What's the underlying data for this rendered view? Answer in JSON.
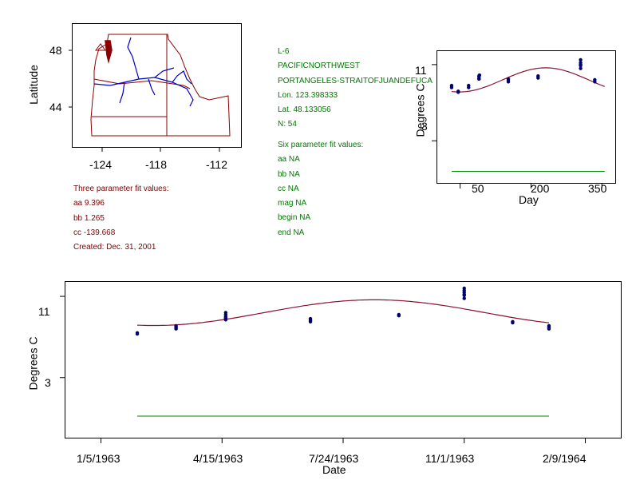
{
  "colors": {
    "fit_curve": "#8b1030",
    "baseline": "#008000",
    "points": "#00006e",
    "map_border": "#8b0000",
    "rivers": "#0000cc",
    "info_green": "#007700",
    "info_maroon": "#7a0000"
  },
  "map": {
    "ylabel": "Latitude",
    "y_ticks": [
      "48",
      "44"
    ],
    "x_ticks": [
      "-124",
      "-118",
      "-112"
    ]
  },
  "station_info": {
    "lines": [
      "L-6",
      "PACIFICNORTHWEST",
      "PORTANGELES-STRAITOFJUANDEFUCA",
      "Lon. 123.398333",
      "Lat. 48.133056",
      "N: 54"
    ]
  },
  "six_param": {
    "lines": [
      "Six parameter fit values:",
      "aa NA",
      "bb NA",
      "cc NA",
      "mag NA",
      "begin NA",
      "end NA"
    ]
  },
  "three_param": {
    "lines": [
      "Three parameter fit values:",
      "aa 9.396",
      "bb 1.265",
      "cc -139.668",
      "Created:   Dec. 31, 2001"
    ]
  },
  "chart_data": [
    {
      "type": "scatter",
      "name": "seasonal",
      "xlabel": "Day",
      "ylabel": "Degrees C",
      "xlim": [
        0,
        380
      ],
      "ylim": [
        -1.5,
        12.5
      ],
      "x_ticks": [
        50,
        200,
        350
      ],
      "x_tick_labels": [
        "50",
        "200",
        "350"
      ],
      "y_ticks": [
        3,
        11
      ],
      "y_tick_labels": [
        "3",
        "11"
      ],
      "fit": {
        "aa": 9.396,
        "bb": 1.265,
        "cc": -139.668,
        "x_range": [
          32,
          356
        ]
      },
      "baseline": {
        "y": -0.2,
        "x_range": [
          32,
          356
        ]
      },
      "points": [
        [
          32,
          8.6
        ],
        [
          32,
          8.8
        ],
        [
          46,
          8.1
        ],
        [
          46,
          8.2
        ],
        [
          68,
          8.6
        ],
        [
          68,
          8.8
        ],
        [
          90,
          9.5
        ],
        [
          90,
          9.8
        ],
        [
          90,
          9.7
        ],
        [
          90,
          9.5
        ],
        [
          91,
          9.9
        ],
        [
          152,
          9.2
        ],
        [
          152,
          9.5
        ],
        [
          152,
          9.4
        ],
        [
          215,
          9.6
        ],
        [
          215,
          9.8
        ],
        [
          305,
          10.9
        ],
        [
          305,
          11.2
        ],
        [
          305,
          11.5
        ],
        [
          305,
          11.0
        ],
        [
          305,
          10.6
        ],
        [
          335,
          9.2
        ],
        [
          335,
          9.4
        ]
      ]
    },
    {
      "type": "scatter",
      "name": "timeseries",
      "xlabel": "Date",
      "ylabel": "Degrees C",
      "xlim": [
        -30,
        430
      ],
      "ylim": [
        -3,
        12.5
      ],
      "x_ticks": [
        0,
        100,
        200,
        300,
        400
      ],
      "x_tick_labels": [
        "1/5/1963",
        "4/15/1963",
        "7/24/1963",
        "11/1/1963",
        "2/9/1964"
      ],
      "y_ticks": [
        3,
        11
      ],
      "y_tick_labels": [
        "3",
        "11"
      ],
      "fit": {
        "aa": 9.396,
        "bb": 1.265,
        "cc": -139.668,
        "x_range": [
          30,
          370
        ],
        "day_offset": 5
      },
      "baseline": {
        "y": -0.8,
        "x_range": [
          30,
          370
        ]
      },
      "points": [
        [
          30,
          7.3
        ],
        [
          30,
          7.4
        ],
        [
          62,
          7.8
        ],
        [
          62,
          7.9
        ],
        [
          62,
          8.0
        ],
        [
          62,
          8.1
        ],
        [
          103,
          8.7
        ],
        [
          103,
          8.8
        ],
        [
          103,
          8.9
        ],
        [
          103,
          9.0
        ],
        [
          103,
          9.2
        ],
        [
          103,
          9.4
        ],
        [
          173,
          8.5
        ],
        [
          173,
          8.6
        ],
        [
          173,
          8.7
        ],
        [
          173,
          8.8
        ],
        [
          246,
          9.1
        ],
        [
          246,
          9.2
        ],
        [
          300,
          10.8
        ],
        [
          300,
          11.1
        ],
        [
          300,
          11.4
        ],
        [
          300,
          11.6
        ],
        [
          300,
          11.8
        ],
        [
          300,
          11.2
        ],
        [
          340,
          8.4
        ],
        [
          340,
          8.5
        ],
        [
          370,
          7.8
        ],
        [
          370,
          7.9
        ],
        [
          370,
          8.0
        ],
        [
          370,
          8.1
        ]
      ]
    }
  ]
}
